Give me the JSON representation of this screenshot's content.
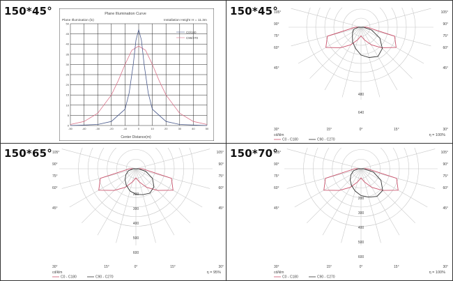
{
  "panel_labels": [
    "150*45°",
    "150*45°",
    "150*65°",
    "150*70°"
  ],
  "plane_chart": {
    "title": "Plane Illumination Curve",
    "ylabel": "Plane Illumination (lx)",
    "height_label": "Installation Height",
    "height_value": "H = 11.3m",
    "xlabel": "Center Distance(m)",
    "legend": [
      "C0/180",
      "C90/270"
    ]
  },
  "polar_common": {
    "angle_labels": [
      "105°",
      "90°",
      "75°",
      "60°",
      "45°",
      "30°",
      "15°",
      "0°",
      "15°",
      "30°"
    ],
    "unit_label": "cd/klm",
    "legend": [
      "C0 - C180",
      "C90 - C270"
    ]
  },
  "polar_panels": [
    {
      "radial_labels": [
        "480",
        "640"
      ],
      "efficiency": "η = 100%"
    },
    {
      "radial_labels": [
        "200",
        "300",
        "400",
        "500",
        "600"
      ],
      "efficiency": "η = 95%"
    },
    {
      "radial_labels": [
        "200",
        "300",
        "400",
        "500",
        "600"
      ],
      "efficiency": "η = 100%"
    }
  ],
  "colors": {
    "red_curve": "#d9738a",
    "blue_curve": "#4a5a8c",
    "polar_red": "#c9506a",
    "polar_dark": "#333333",
    "grid": "#c8c8c8"
  },
  "chart_data": [
    {
      "type": "line",
      "title": "Plane Illumination Curve",
      "xlabel": "Center Distance(m)",
      "ylabel": "Plane Illumination (lx)",
      "xlim": [
        -50,
        50
      ],
      "ylim": [
        0,
        50
      ],
      "x_ticks": [
        -50,
        -40,
        -30,
        -20,
        -10,
        0,
        10,
        20,
        30,
        40,
        50
      ],
      "y_ticks": [
        0,
        5,
        10,
        15,
        20,
        25,
        30,
        35,
        40,
        45,
        50
      ],
      "x_tick_labels": [
        "-50",
        "-40",
        "-30",
        "-20",
        "-10",
        "0",
        "10",
        "20",
        "30",
        "40",
        "50"
      ],
      "y_tick_labels": [
        "0",
        "5",
        "10",
        "15",
        "20",
        "25",
        "30",
        "35",
        "40",
        "45",
        "50"
      ],
      "grid": true,
      "legend_position": "top-right",
      "series": [
        {
          "name": "C0/180",
          "x": [
            -50,
            -40,
            -30,
            -20,
            -15,
            -10,
            -5,
            0,
            5,
            10,
            15,
            20,
            30,
            40,
            50
          ],
          "y": [
            0.5,
            2,
            6,
            15,
            22,
            30,
            37,
            39,
            37,
            30,
            22,
            15,
            6,
            2,
            0.5
          ]
        },
        {
          "name": "C90/270",
          "x": [
            -50,
            -30,
            -20,
            -10,
            -7,
            -4,
            -2,
            0,
            2,
            4,
            7,
            10,
            20,
            30,
            50
          ],
          "y": [
            0,
            0.5,
            2,
            8,
            16,
            30,
            42,
            47,
            42,
            30,
            16,
            8,
            2,
            0.5,
            0
          ]
        }
      ]
    },
    {
      "type": "line",
      "panel": "150*45°",
      "units": "cd/klm",
      "angles_deg": [
        -105,
        -90,
        -75,
        -60,
        -45,
        -30,
        -15,
        0,
        15,
        30,
        45,
        60,
        75,
        90,
        105
      ],
      "series": [
        {
          "name": "C0 - C180",
          "r": [
            0,
            40,
            240,
            280,
            200,
            140,
            90,
            60,
            90,
            140,
            200,
            280,
            240,
            40,
            0
          ]
        },
        {
          "name": "C90 - C270",
          "r": [
            0,
            20,
            60,
            80,
            100,
            140,
            180,
            230,
            260,
            280,
            250,
            180,
            90,
            20,
            0
          ]
        }
      ]
    },
    {
      "type": "line",
      "panel": "150*65°",
      "units": "cd/klm",
      "angles_deg": [
        -105,
        -90,
        -75,
        -60,
        -45,
        -30,
        -15,
        0,
        15,
        30,
        45,
        60,
        75,
        90,
        105
      ],
      "series": [
        {
          "name": "C0 - C180",
          "r": [
            0,
            40,
            240,
            280,
            200,
            140,
            90,
            60,
            90,
            140,
            200,
            280,
            240,
            40,
            0
          ]
        },
        {
          "name": "C90 - C270",
          "r": [
            0,
            20,
            60,
            90,
            120,
            150,
            180,
            200,
            210,
            220,
            200,
            150,
            80,
            20,
            0
          ]
        }
      ]
    },
    {
      "type": "line",
      "panel": "150*70°",
      "units": "cd/klm",
      "angles_deg": [
        -105,
        -90,
        -75,
        -60,
        -45,
        -30,
        -15,
        0,
        15,
        30,
        45,
        60,
        75,
        90,
        105
      ],
      "series": [
        {
          "name": "C0 - C180",
          "r": [
            0,
            40,
            240,
            280,
            200,
            140,
            90,
            60,
            90,
            140,
            200,
            280,
            240,
            40,
            0
          ]
        },
        {
          "name": "C90 - C270",
          "r": [
            0,
            20,
            60,
            90,
            120,
            150,
            180,
            210,
            230,
            250,
            240,
            180,
            100,
            20,
            0
          ]
        }
      ]
    }
  ]
}
